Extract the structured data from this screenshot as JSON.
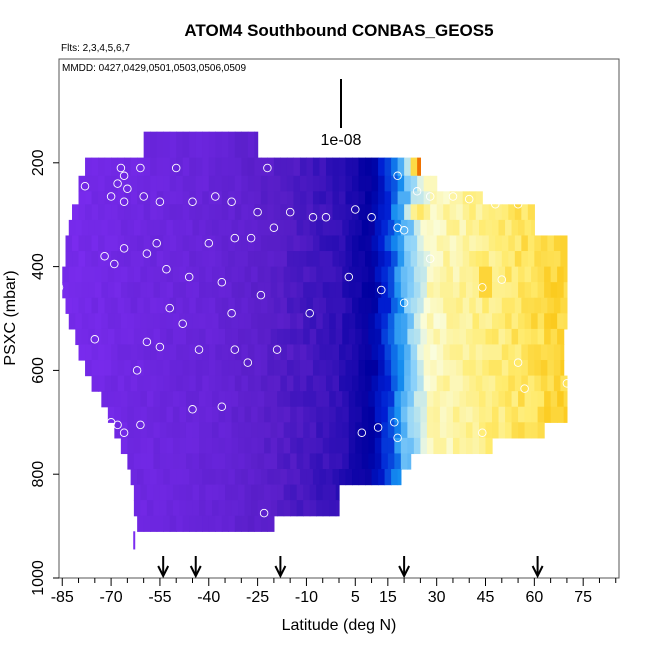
{
  "chart_data": {
    "type": "heatmap",
    "title": "ATOM4 Southbound CONBAS_GEOS5",
    "flights_text": "Flts: 2,3,4,5,6,7",
    "dates_text": "MMDD: 0427,0429,0501,0503,0506,0509",
    "xlabel": "Latitude (deg N)",
    "ylabel": "PSXC (mbar)",
    "xlim": [
      -86,
      86
    ],
    "ylim": [
      1000,
      0
    ],
    "x_ticks": [
      -85,
      -70,
      -55,
      -40,
      -25,
      -10,
      5,
      15,
      30,
      45,
      60,
      75
    ],
    "x_tick_labels": [
      "-85",
      "-70",
      "-55",
      "-40",
      "-25",
      "-10",
      "5",
      "15",
      "30",
      "45",
      "60",
      "75"
    ],
    "y_ticks": [
      200,
      400,
      600,
      800,
      1000
    ],
    "y_tick_labels": [
      "200",
      "400",
      "600",
      "800",
      "1000"
    ],
    "scale_bar_label": "1e-08",
    "arrow_latitudes": [
      -54,
      -44,
      -18,
      20,
      61
    ],
    "colors": {
      "low": "#7b2cf0",
      "mid": "#0a0ab0",
      "high": "#c41200"
    },
    "boundary": [
      [
        140,
        190,
        -60,
        -25
      ],
      [
        190,
        225,
        -78,
        25
      ],
      [
        225,
        255,
        -80,
        30
      ],
      [
        255,
        280,
        -80,
        44
      ],
      [
        280,
        310,
        -82,
        60
      ],
      [
        310,
        340,
        -83,
        60
      ],
      [
        340,
        370,
        -84,
        70
      ],
      [
        370,
        400,
        -84,
        70
      ],
      [
        400,
        430,
        -85,
        70
      ],
      [
        430,
        460,
        -85,
        70
      ],
      [
        460,
        490,
        -84,
        70
      ],
      [
        490,
        520,
        -83,
        70
      ],
      [
        520,
        550,
        -81,
        69
      ],
      [
        550,
        580,
        -80,
        69
      ],
      [
        580,
        610,
        -78,
        69
      ],
      [
        610,
        640,
        -76,
        70
      ],
      [
        640,
        670,
        -73,
        70
      ],
      [
        670,
        700,
        -71,
        70
      ],
      [
        700,
        730,
        -69,
        63
      ],
      [
        730,
        760,
        -67,
        47
      ],
      [
        760,
        790,
        -65,
        22
      ],
      [
        790,
        820,
        -64,
        19
      ],
      [
        820,
        850,
        -63,
        0
      ],
      [
        850,
        880,
        -63,
        0
      ],
      [
        880,
        910,
        -62,
        -20
      ]
    ],
    "hotspots": [
      [
        27,
        210,
        40,
        1.0
      ],
      [
        25,
        300,
        30,
        0.85
      ],
      [
        45,
        430,
        50,
        0.95
      ],
      [
        32,
        420,
        30,
        0.8
      ],
      [
        55,
        350,
        25,
        0.8
      ],
      [
        52,
        480,
        35,
        0.85
      ],
      [
        60,
        400,
        25,
        0.75
      ],
      [
        68,
        500,
        20,
        0.7
      ],
      [
        58,
        680,
        18,
        0.75
      ],
      [
        40,
        650,
        25,
        0.7
      ],
      [
        35,
        730,
        20,
        0.7
      ],
      [
        68,
        620,
        20,
        0.6
      ],
      [
        27,
        250,
        30,
        0.65
      ]
    ],
    "points": [
      [
        -67,
        210
      ],
      [
        -66,
        225
      ],
      [
        -68,
        240
      ],
      [
        -65,
        250
      ],
      [
        -61,
        210
      ],
      [
        -50,
        210
      ],
      [
        -22,
        210
      ],
      [
        -78,
        245
      ],
      [
        -70,
        265
      ],
      [
        -60,
        265
      ],
      [
        -66,
        275
      ],
      [
        -55,
        275
      ],
      [
        -45,
        275
      ],
      [
        -38,
        265
      ],
      [
        -33,
        275
      ],
      [
        -25,
        295
      ],
      [
        -15,
        295
      ],
      [
        -8,
        305
      ],
      [
        5,
        290
      ],
      [
        10,
        305
      ],
      [
        18,
        225
      ],
      [
        24,
        255
      ],
      [
        28,
        265
      ],
      [
        35,
        265
      ],
      [
        40,
        270
      ],
      [
        48,
        280
      ],
      [
        55,
        280
      ],
      [
        63,
        290
      ],
      [
        -4,
        305
      ],
      [
        -20,
        325
      ],
      [
        -27,
        345
      ],
      [
        -32,
        345
      ],
      [
        -40,
        355
      ],
      [
        -56,
        355
      ],
      [
        -66,
        365
      ],
      [
        -59,
        375
      ],
      [
        -72,
        380
      ],
      [
        -69,
        395
      ],
      [
        -53,
        405
      ],
      [
        -46,
        420
      ],
      [
        -36,
        430
      ],
      [
        -52,
        480
      ],
      [
        -48,
        510
      ],
      [
        -33,
        490
      ],
      [
        -24,
        455
      ],
      [
        -9,
        490
      ],
      [
        3,
        420
      ],
      [
        13,
        445
      ],
      [
        20,
        470
      ],
      [
        28,
        385
      ],
      [
        50,
        425
      ],
      [
        44,
        440
      ],
      [
        -86,
        440
      ],
      [
        -75,
        540
      ],
      [
        -59,
        545
      ],
      [
        -55,
        555
      ],
      [
        -43,
        560
      ],
      [
        -32,
        560
      ],
      [
        -19,
        560
      ],
      [
        -28,
        585
      ],
      [
        55,
        585
      ],
      [
        -62,
        600
      ],
      [
        -45,
        675
      ],
      [
        -36,
        670
      ],
      [
        -70,
        700
      ],
      [
        -68,
        705
      ],
      [
        -66,
        720
      ],
      [
        -61,
        705
      ],
      [
        7,
        720
      ],
      [
        12,
        710
      ],
      [
        17,
        700
      ],
      [
        18,
        730
      ],
      [
        44,
        720
      ],
      [
        57,
        635
      ],
      [
        70,
        625
      ],
      [
        -66,
        800
      ],
      [
        -23,
        875
      ],
      [
        18,
        325
      ],
      [
        20,
        330
      ]
    ]
  }
}
